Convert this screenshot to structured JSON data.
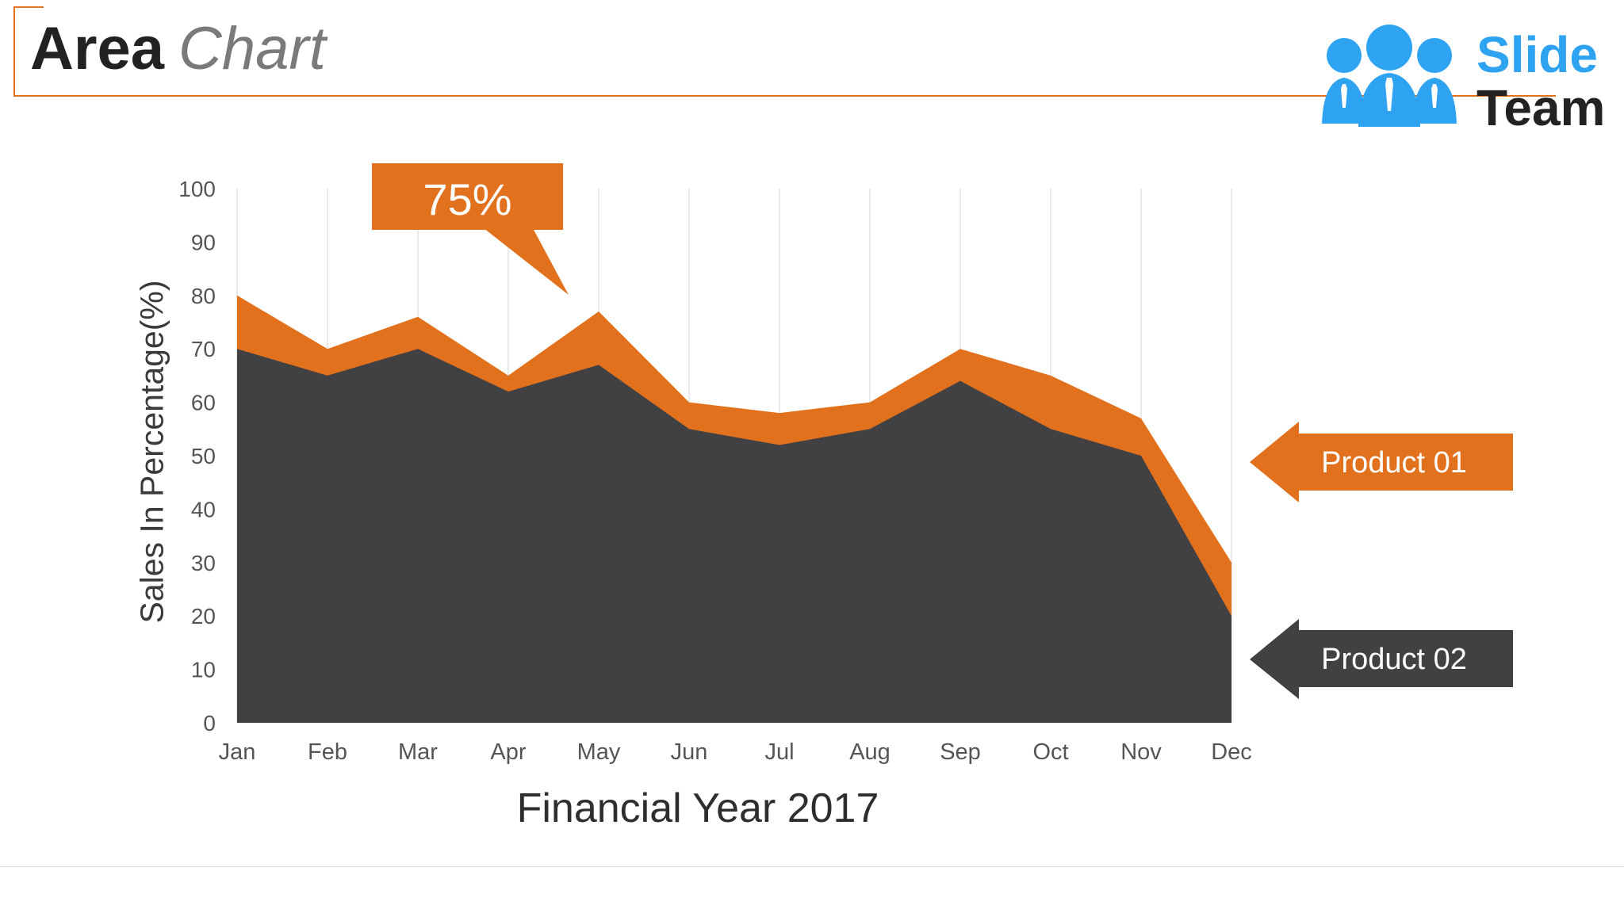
{
  "title": {
    "strong": "Area",
    "light": "Chart"
  },
  "logo": {
    "line1": "Slide",
    "line2": "Team",
    "icon": "team-people-icon"
  },
  "callout": {
    "text": "75%"
  },
  "colors": {
    "accent": "#e2711d",
    "dark": "#414042",
    "logo_blue": "#2ea3f2"
  },
  "chart_data": {
    "type": "area",
    "categories": [
      "Jan",
      "Feb",
      "Mar",
      "Apr",
      "May",
      "Jun",
      "Jul",
      "Aug",
      "Sep",
      "Oct",
      "Nov",
      "Dec"
    ],
    "series": [
      {
        "name": "Product 01",
        "color": "#e2711d",
        "values": [
          80,
          70,
          76,
          65,
          77,
          60,
          58,
          60,
          70,
          65,
          57,
          30
        ]
      },
      {
        "name": "Product 02",
        "color": "#414042",
        "values": [
          70,
          65,
          70,
          62,
          67,
          55,
          52,
          55,
          64,
          55,
          50,
          20
        ]
      }
    ],
    "xlabel": "Financial Year 2017",
    "ylabel": "Sales In Percentage(%)",
    "ylim": [
      0,
      100
    ],
    "yticks": [
      0,
      10,
      20,
      30,
      40,
      50,
      60,
      70,
      80,
      90,
      100
    ],
    "grid": "vertical"
  }
}
